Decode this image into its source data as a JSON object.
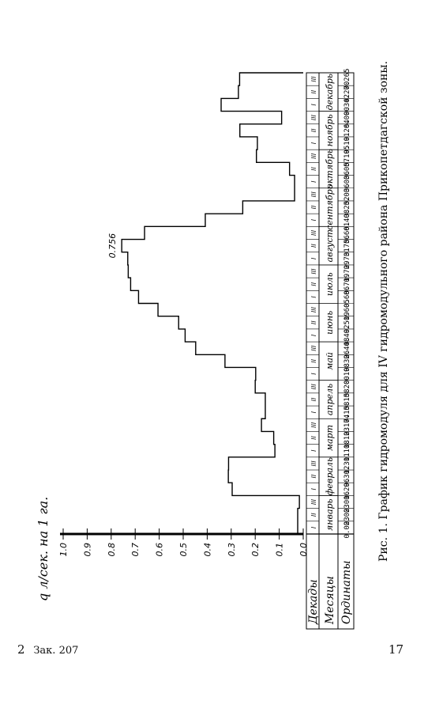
{
  "page": {
    "caption": "Рис. 1. График гидромодуля для IV гидромодульного района Прикопетдагской зоны.",
    "footer_left": "2",
    "footer_left_note": "Зак. 207",
    "page_number": "17"
  },
  "chart_data": {
    "type": "bar",
    "title": "",
    "ylabel": "q л/сек. на 1 га.",
    "ylim": [
      0,
      1.0
    ],
    "yticks": [
      "0.0",
      "0.1",
      "0.2",
      "0.3",
      "0.4",
      "0.5",
      "0.6",
      "0.7",
      "0.8",
      "0.9",
      "1.0"
    ],
    "peak_label": "0.756",
    "row_labels": {
      "decades": "Декады",
      "months": "Месяцы",
      "ordinates": "Ординаты"
    },
    "months": [
      "январь",
      "февраль",
      "март",
      "апрель",
      "май",
      "июнь",
      "июль",
      "август",
      "сентябрь",
      "октябрь",
      "ноябрь",
      "декабрь"
    ],
    "decades": [
      "I",
      "II",
      "III",
      "I",
      "II",
      "III",
      "I",
      "II",
      "III",
      "I",
      "II",
      "III",
      "I",
      "II",
      "III",
      "I",
      "II",
      "III",
      "I",
      "II",
      "III",
      "I",
      "II",
      "III",
      "I",
      "II",
      "III",
      "I",
      "II",
      "III",
      "I",
      "II",
      "III",
      "I",
      "II",
      "III"
    ],
    "values": [
      0.023,
      0.023,
      0.016,
      0.296,
      0.312,
      0.311,
      0.118,
      0.123,
      0.174,
      0.158,
      0.158,
      0.2,
      0.198,
      0.326,
      0.448,
      0.492,
      0.519,
      0.605,
      0.686,
      0.719,
      0.729,
      0.731,
      0.756,
      0.661,
      0.408,
      0.252,
      0.036,
      0.036,
      0.057,
      0.195,
      0.191,
      0.264,
      0.09,
      0.342,
      0.27,
      0.265
    ],
    "ordinate_labels": [
      "0.023",
      "0.023",
      "0.016",
      "0.296",
      "0.312",
      "0.311",
      "0.118",
      "0.123",
      "0.174",
      "0.158",
      "0.158",
      "0.200",
      "0.198",
      "0.326",
      "0.448",
      "0.492",
      "0.519",
      "0.605",
      "0.686",
      "0.719",
      "0.729",
      "0.731",
      "0.756",
      "0.661",
      "0.408",
      "0.252",
      "0.036",
      "0.036",
      "0.057",
      "0.195",
      "0.191",
      "0.264",
      "0.090",
      "0.342",
      "0.270",
      "0.265"
    ]
  }
}
